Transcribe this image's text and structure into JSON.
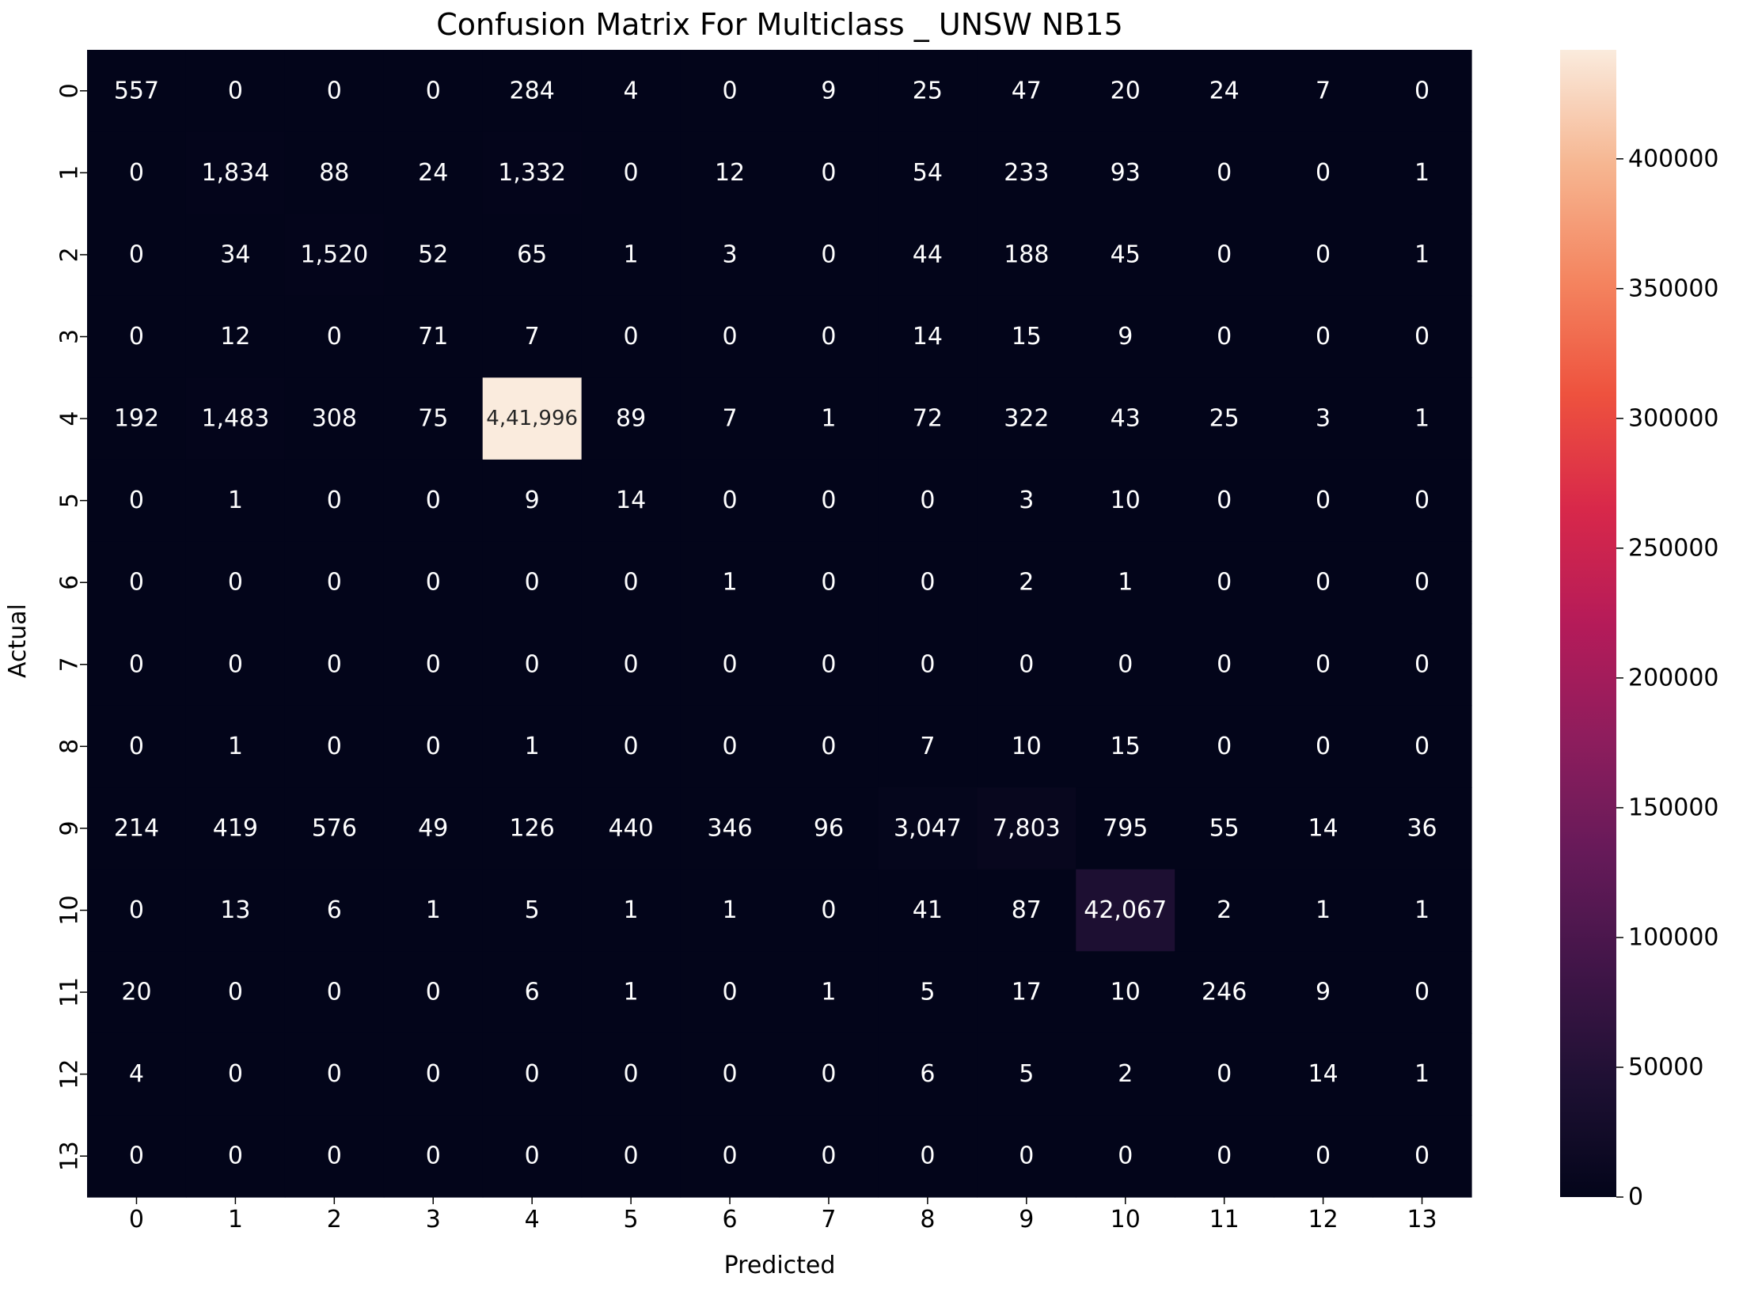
{
  "chart_data": {
    "type": "heatmap",
    "title": "Confusion Matrix For Multiclass _ UNSW NB15",
    "xlabel": "Predicted",
    "ylabel": "Actual",
    "x_categories": [
      "0",
      "1",
      "2",
      "3",
      "4",
      "5",
      "6",
      "7",
      "8",
      "9",
      "10",
      "11",
      "12",
      "13"
    ],
    "y_categories": [
      "0",
      "1",
      "2",
      "3",
      "4",
      "5",
      "6",
      "7",
      "8",
      "9",
      "10",
      "11",
      "12",
      "13"
    ],
    "cell_labels": [
      [
        "557",
        "0",
        "0",
        "0",
        "284",
        "4",
        "0",
        "9",
        "25",
        "47",
        "20",
        "24",
        "7",
        "0"
      ],
      [
        "0",
        "1,834",
        "88",
        "24",
        "1,332",
        "0",
        "12",
        "0",
        "54",
        "233",
        "93",
        "0",
        "0",
        "1"
      ],
      [
        "0",
        "34",
        "1,520",
        "52",
        "65",
        "1",
        "3",
        "0",
        "44",
        "188",
        "45",
        "0",
        "0",
        "1"
      ],
      [
        "0",
        "12",
        "0",
        "71",
        "7",
        "0",
        "0",
        "0",
        "14",
        "15",
        "9",
        "0",
        "0",
        "0"
      ],
      [
        "192",
        "1,483",
        "308",
        "75",
        "4,41,996",
        "89",
        "7",
        "1",
        "72",
        "322",
        "43",
        "25",
        "3",
        "1"
      ],
      [
        "0",
        "1",
        "0",
        "0",
        "9",
        "14",
        "0",
        "0",
        "0",
        "3",
        "10",
        "0",
        "0",
        "0"
      ],
      [
        "0",
        "0",
        "0",
        "0",
        "0",
        "0",
        "1",
        "0",
        "0",
        "2",
        "1",
        "0",
        "0",
        "0"
      ],
      [
        "0",
        "0",
        "0",
        "0",
        "0",
        "0",
        "0",
        "0",
        "0",
        "0",
        "0",
        "0",
        "0",
        "0"
      ],
      [
        "0",
        "1",
        "0",
        "0",
        "1",
        "0",
        "0",
        "0",
        "7",
        "10",
        "15",
        "0",
        "0",
        "0"
      ],
      [
        "214",
        "419",
        "576",
        "49",
        "126",
        "440",
        "346",
        "96",
        "3,047",
        "7,803",
        "795",
        "55",
        "14",
        "36"
      ],
      [
        "0",
        "13",
        "6",
        "1",
        "5",
        "1",
        "1",
        "0",
        "41",
        "87",
        "42,067",
        "2",
        "1",
        "1"
      ],
      [
        "20",
        "0",
        "0",
        "0",
        "6",
        "1",
        "0",
        "1",
        "5",
        "17",
        "10",
        "246",
        "9",
        "0"
      ],
      [
        "4",
        "0",
        "0",
        "0",
        "0",
        "0",
        "0",
        "0",
        "6",
        "5",
        "2",
        "0",
        "14",
        "1"
      ],
      [
        "0",
        "0",
        "0",
        "0",
        "0",
        "0",
        "0",
        "0",
        "0",
        "0",
        "0",
        "0",
        "0",
        "0"
      ]
    ],
    "values": [
      [
        557,
        0,
        0,
        0,
        284,
        4,
        0,
        9,
        25,
        47,
        20,
        24,
        7,
        0
      ],
      [
        0,
        1834,
        88,
        24,
        1332,
        0,
        12,
        0,
        54,
        233,
        93,
        0,
        0,
        1
      ],
      [
        0,
        34,
        1520,
        52,
        65,
        1,
        3,
        0,
        44,
        188,
        45,
        0,
        0,
        1
      ],
      [
        0,
        12,
        0,
        71,
        7,
        0,
        0,
        0,
        14,
        15,
        9,
        0,
        0,
        0
      ],
      [
        192,
        1483,
        308,
        75,
        441996,
        89,
        7,
        1,
        72,
        322,
        43,
        25,
        3,
        1
      ],
      [
        0,
        1,
        0,
        0,
        9,
        14,
        0,
        0,
        0,
        3,
        10,
        0,
        0,
        0
      ],
      [
        0,
        0,
        0,
        0,
        0,
        0,
        1,
        0,
        0,
        2,
        1,
        0,
        0,
        0
      ],
      [
        0,
        0,
        0,
        0,
        0,
        0,
        0,
        0,
        0,
        0,
        0,
        0,
        0,
        0
      ],
      [
        0,
        1,
        0,
        0,
        1,
        0,
        0,
        0,
        7,
        10,
        15,
        0,
        0,
        0
      ],
      [
        214,
        419,
        576,
        49,
        126,
        440,
        346,
        96,
        3047,
        7803,
        795,
        55,
        14,
        36
      ],
      [
        0,
        13,
        6,
        1,
        5,
        1,
        1,
        0,
        41,
        87,
        42067,
        2,
        1,
        1
      ],
      [
        20,
        0,
        0,
        0,
        6,
        1,
        0,
        1,
        5,
        17,
        10,
        246,
        9,
        0
      ],
      [
        4,
        0,
        0,
        0,
        0,
        0,
        0,
        0,
        6,
        5,
        2,
        0,
        14,
        1
      ],
      [
        0,
        0,
        0,
        0,
        0,
        0,
        0,
        0,
        0,
        0,
        0,
        0,
        0,
        0
      ]
    ],
    "colorbar": {
      "colormap": "rocket",
      "range": [
        0,
        441996
      ],
      "ticks": [
        0,
        50000,
        100000,
        150000,
        200000,
        250000,
        300000,
        350000,
        400000
      ],
      "tick_labels": [
        "0",
        "50000",
        "100000",
        "150000",
        "200000",
        "250000",
        "300000",
        "350000",
        "400000"
      ]
    },
    "grid": false,
    "legend": "colorbar-right"
  }
}
